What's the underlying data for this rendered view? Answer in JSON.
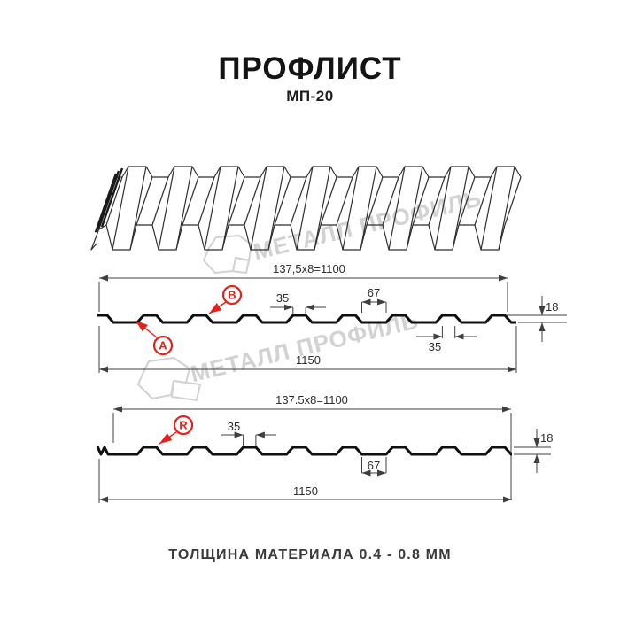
{
  "header": {
    "title": "ПРОФЛИСТ",
    "subtitle": "МП-20"
  },
  "footer": {
    "caption": "ТОЛЩИНА МАТЕРИАЛА 0.4 - 0.8 ММ"
  },
  "watermarks": {
    "text": "МЕТАЛЛ ПРОФИЛЬ",
    "color": "#d2d2d2"
  },
  "colors": {
    "accent_red": "#e2231a",
    "drawing_line": "#3f3f3f",
    "profile_line": "#0f0f0f"
  },
  "section_top": {
    "pitch_dim": "137,5x8=1100",
    "rib_top_dim": "35",
    "valley_dim": "67",
    "height_dim": "18",
    "rib_bottom_dim": "35",
    "width_dim": "1150",
    "label_a": "A",
    "label_b": "B"
  },
  "section_bottom": {
    "pitch_dim": "137.5x8=1100",
    "rib_dim": "35",
    "valley_dim": "67",
    "height_dim": "18",
    "width_dim": "1150",
    "label_r": "R"
  }
}
